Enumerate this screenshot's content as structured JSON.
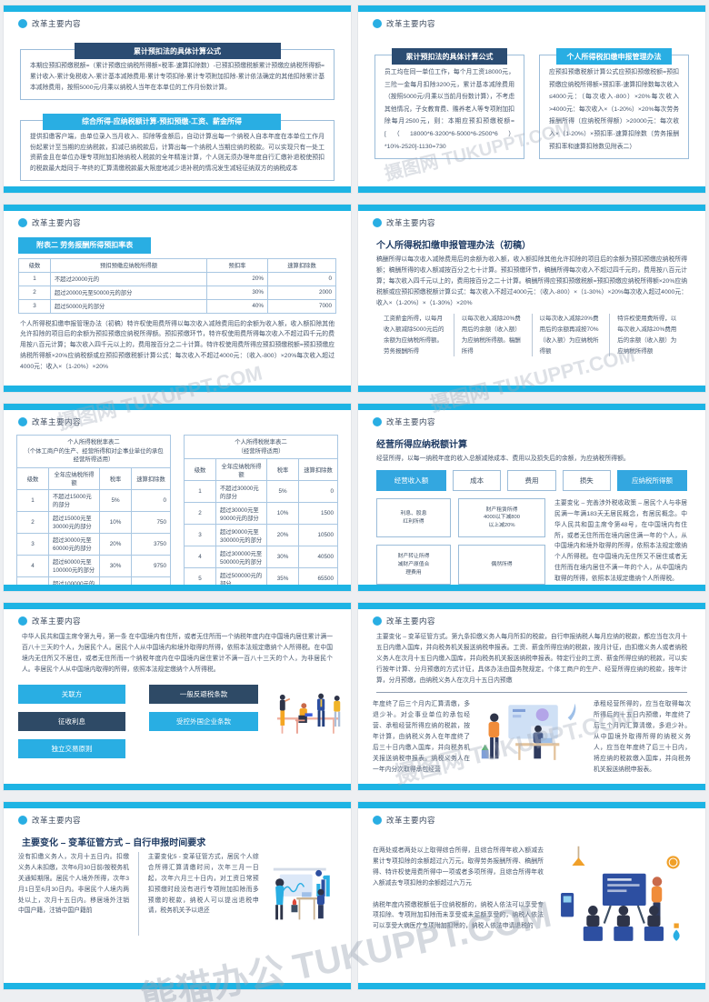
{
  "watermarks": {
    "diagonal": "摄图网 TUKUPPT.COM",
    "footer": "熊猫办公 TUKUPPT.COM"
  },
  "colors": {
    "accent_cyan": "#29aee3",
    "navy": "#2b4c72",
    "bar_cyan": "#1db4e4"
  },
  "slides": [
    {
      "header": "改革主要内容",
      "boxes": [
        {
          "title": "累计预扣法的具体计算公式",
          "body": "本期应预扣预缴税额=（累计预缴应纳税所得额×税率-速算扣除数）-已预扣预缴税额累计预缴应纳税所得额=累计收入-累计免税收入-累计基本减除费用-累计专项扣除-累计专项附加扣除-累计依法确定的其他扣除累计基本减除费用，按照5000元/月乘以纳税人当年在本单位的工作月份数计算。"
        },
        {
          "title": "综合所得-应纳税额计算-预扣预缴-工资、薪金所得",
          "body": "提供扣缴客户端，由单位录入当月收入、扣除等金额后，自动计算出每一个纳税人自本年度在本单位工作月份起累计至当期的应纳税款，扣减已纳税款后，计算出每一个纳税人当期应纳的税款。可以实现只有一处工资薪金且在单位办理专项附加扣除纳税人税款的全年精准计算，个人则无须办理年度自行汇缴补退税使预扣的税款最大趋同于-年终的汇算清缴税款最大限度地减少退补税的情况发生减轻征纳双方的纳税成本"
        }
      ]
    },
    {
      "header": "改革主要内容",
      "boxes": [
        {
          "title": "累计预扣法的具体计算公式",
          "body": "员工均在同一单位工作，每个月工资18000元，三险一金每月扣除3200元，累计基本减除费用（按照5000元/月乘以当前月份数计算），不考虑其他情况，子女教育费、赡养老人等专项附加扣除每月2500元，则：本期应预扣预缴税额=[（18000*6-3200*6-5000*6-2500*6）*10%-2520]-1130=730"
        },
        {
          "title": "个人所得税扣缴申报管理办法",
          "body": "应预扣预缴税额计算公式应预扣预缴税额=预扣预缴应纳税所得额×预扣率-速算扣除数每次收入≤4000元：（每次收入-800）×20%每次收入>4000元：每次收入×（1-20%）×20%每次劳务报酬所得（应纳税所得额）>20000元：每次收入×（1-20%）×预扣率-速算扣除数（劳务报酬预扣率和速算扣除数见附表二）"
        }
      ]
    },
    {
      "header": "改革主要内容",
      "banner": "附表二  劳务报酬所得预扣率表",
      "table": {
        "headers": [
          "级数",
          "预扣预缴应纳税所得额",
          "预扣率",
          "速算扣除数"
        ],
        "rows": [
          [
            "1",
            "不超过20000元的",
            "20%",
            "0"
          ],
          [
            "2",
            "超过20000元至50000元的部分",
            "30%",
            "2000"
          ],
          [
            "3",
            "超过50000元的部分",
            "40%",
            "7000"
          ]
        ]
      },
      "paragraph": "个人所得税扣缴申报管理办法（初稿）特许权使用费所得以每次收入减除费用后的余额为收入额，收入额扣除其他允许扣除的项目后的余额为预扣预缴应纳税所得额。预扣预缴环节，特许权使用费所得每次收入不超过四千元的费用按八百元计算；每次收入四千元以上的，费用按百分之二十计算。特许权使用费所得应预扣预缴税额=预扣预缴应纳税所得额×20%应纳税额或应预扣预缴税额计算公式：每次收入不超过4000元：（收入-800）×20%每次收入超过4000元：收入×（1-20%）×20%"
    },
    {
      "header": "改革主要内容",
      "title": "个人所得税扣缴申报管理办法（初稿）",
      "paragraph": "稿酬所得以每次收入减除费用后的余额为收入额，收入额扣除其他允许扣除的项目后的余额为预扣预缴应纳税所得额；稿酬所得的收入额减按百分之七十计算。预扣预缴环节，稿酬所得每次收入不超过四千元的，费用按八百元计算；每次收入四千元以上的，费用按百分之二十计算。稿酬所得应预扣预缴税额=预扣预缴应纳税所得额×20%应纳税额或应预扣预缴税额计算公式：每次收入不超过4000元：（收入-800）×（1-30%）×20%每次收入超过4000元：收入×（1-20%）×（1-30%）×20%",
      "columns": [
        "工资薪金所得，以每月收入额减除5000元后的余额为应纳税所得额。劳务报酬所得",
        "以每次收入减除20%费用后的余额（收入额）为应纳税所得额。稿酬所得",
        "以每次收入减除20%费用后的余额再减按70%（收入额）为应纳税所得额",
        "特许权使用费所得，以每次收入减除20%费用后的余额（收入额）为应纳税所得额"
      ]
    },
    {
      "header": "改革主要内容",
      "tables": [
        {
          "title": "个人所得税税率表二\n（个体工商户的生产、经营所得和对企事业单位的承包\n经营所得适用）",
          "headers": [
            "级数",
            "全年应纳税所得额",
            "税率",
            "速算扣除数"
          ],
          "rows": [
            [
              "1",
              "不超过15000元的部分",
              "5%",
              "0"
            ],
            [
              "2",
              "超过15000元至30000元的部分",
              "10%",
              "750"
            ],
            [
              "3",
              "超过30000元至60000元的部分",
              "20%",
              "3750"
            ],
            [
              "4",
              "超过60000元至100000元的部分",
              "30%",
              "9750"
            ],
            [
              "5",
              "超过100000元的部分",
              "35%",
              "14750"
            ]
          ]
        },
        {
          "title": "个人所得税税率表二\n（经营所得适用）",
          "headers": [
            "级数",
            "全年应纳税所得额",
            "税率",
            "速算扣除数"
          ],
          "rows": [
            [
              "1",
              "不超过30000元的部分",
              "5%",
              "0"
            ],
            [
              "2",
              "超过30000元至90000元的部分",
              "10%",
              "1500"
            ],
            [
              "3",
              "超过90000元至300000元的部分",
              "20%",
              "10500"
            ],
            [
              "4",
              "超过300000元至500000元的部分",
              "30%",
              "40500"
            ],
            [
              "5",
              "超过500000元的部分",
              "35%",
              "65500"
            ]
          ]
        }
      ]
    },
    {
      "header": "改革主要内容",
      "title": "经营所得应纳税额计算",
      "subtitle": "经营所得，以每一纳税年度的收入总额减除成本、费用以及损失后的余额，为应纳税所得额。",
      "flow": [
        "经营收入额",
        "成本",
        "费用",
        "损失",
        "应纳税所得额"
      ],
      "side_boxes": [
        "利息、股息\n红利所得",
        "财产租赁所得\n4000以下减800\n以上减20%",
        "财产转让所得\n减财产原值合\n理费用",
        "偶然所得"
      ],
      "paragraph": "主要变化 – 完善涉外税收政策 – 居民个人与非居民满一年满183天无居民概念，有居民概念。中华人民共和国主席令第48号，在中国境内有住所，或者无住所而在境内居住满一年的个人，从中国境内和境外取得的所得，依照本法规定缴纳个人所得税。在中国境内无住所又不居住或者无住所而在境内居住不满一年的个人，从中国境内取得的所得，依照本法规定缴纳个人所得税。"
    },
    {
      "header": "改革主要内容",
      "paragraph": "中华人民共和国主席令第九号，第一条  在中国境内有住所，或者无住所而一个纳税年度内在中国境内居住累计满一百八十三天的个人，为居民个人。居民个人从中国境内和境外取得的所得，依照本法规定缴纳个人所得税。在中国境内无住所又不居住，或者无住所而一个纳税年度内在中国境内居住累计不满一百八十三天的个人，为非居民个人。非居民个人从中国境内取得的所得，依照本法规定缴纳个人所得税。",
      "tags": [
        {
          "label": "关联方",
          "style": "cyan"
        },
        {
          "label": "一般反避税条款",
          "style": "navy"
        },
        {
          "label": "征收利息",
          "style": "navy"
        },
        {
          "label": "受控外国企业条款",
          "style": "cyan"
        },
        {
          "label": "独立交易原则",
          "style": "cyan"
        }
      ]
    },
    {
      "header": "改革主要内容",
      "paragraph": "主要变化 – 变革征管方式。第九条扣缴义务人每月所扣的税款，自行申报纳税人每月应纳的税款，都应当在次月十五日内缴入国库，并向税务机关报送纳税申报表。工资、薪金所得应纳的税款，按月计征，由扣缴义务人或者纳税义务人在次月十五日内缴入国库，并向税务机关报送纳税申报表。特定行业的工资、薪金所得应纳的税款，可以实行按年计算、分月预缴的方式计征，具体办法由国务院规定。个体工商户的生产、经营所得应纳的税款，按年计算，分月预缴，由纳税义务人在次月十五日内预缴",
      "left_col": "年度终了后三个月内汇算清缴，多退少补。对企事业单位的承包经营、承租经营所得应纳的税款，按年计算，由纳税义务人在年度终了后三十日内缴入国库，并向税务机关报送纳税申报表。纳税义务人在一年内分次取得承包经营",
      "right_col": "承租经营所得的，应当在取得每次所得后的十五日内预缴，年度终了后三个月内汇算清缴，多退少补。从中国境外取得所得的纳税义务人，应当在年度终了后三十日内，将应纳的税款缴入国库，并向税务机关报送纳税申报表。"
    },
    {
      "header": "改革主要内容",
      "title": "主要变化 – 变革征管方式 – 自行申报时间要求",
      "col1": "没有扣缴义务人，次月十五日内。扣缴义务人未扣缴，次年6月30日前/按税务机关通知期限。居民个人境外所得，次年3月1日至6月30日内。非居民个人境内两处以上，次月十五日内。移居境外注销中国户籍，注销中国户籍前",
      "col2": "主要变化5 - 变革征管方式，居民个人综合所得汇算清缴时间，次年三月一日起，次年六月三十日内，对工资日常预扣预缴时段没有进行专项附加扣除而多预缴的税款，纳税人可以提出退税申请，税务机关予以退还"
    },
    {
      "header": "改革主要内容",
      "paragraph1": "在两处或者两处以上取得综合所得，且综合所得年收入额减去累计专项扣除的余额超过六万元。取得劳务报酬所得、稿酬所得、特许权使用费所得中一项或者多项所得，且综合所得年收入额减去专项扣除的余额超过六万元",
      "paragraph2": "纳税年度内预缴税额低于应纳税额的，纳税人依法可以享受专项扣除、专项附加扣除而未享受或未足额享受的，纳税人依法可以享受大病医疗专项附加扣除的，纳税人依法申请退税的"
    }
  ]
}
